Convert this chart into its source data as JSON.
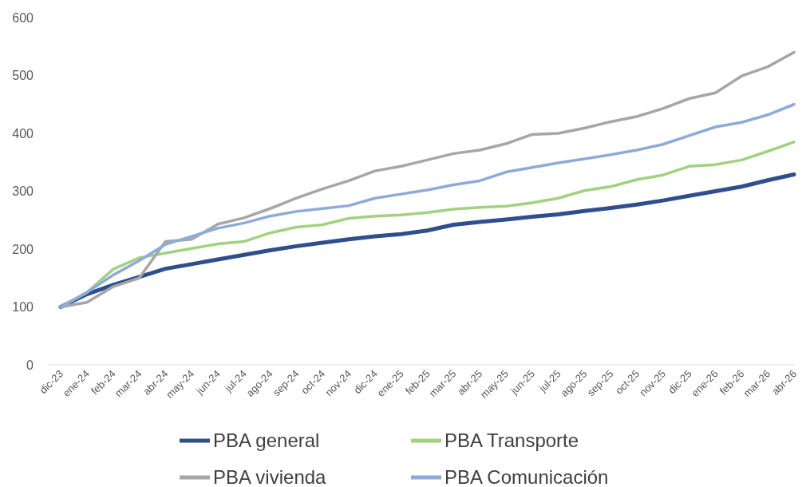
{
  "chart_data": {
    "type": "line",
    "categories": [
      "dic-23",
      "ene-24",
      "feb-24",
      "mar-24",
      "abr-24",
      "may-24",
      "jun-24",
      "jul-24",
      "ago-24",
      "sep-24",
      "oct-24",
      "nov-24",
      "dic-24",
      "ene-25",
      "feb-25",
      "mar-25",
      "abr-25",
      "may-25",
      "jun-25",
      "jul-25",
      "ago-25",
      "sep-25",
      "oct-25",
      "nov-25",
      "dic-25",
      "ene-26",
      "feb-26",
      "mar-26",
      "abr-26"
    ],
    "series": [
      {
        "name": "PBA general",
        "color": "#2f4e8c",
        "values": [
          100,
          122,
          138,
          152,
          166,
          174,
          182,
          190,
          198,
          205,
          211,
          217,
          222,
          226,
          232,
          242,
          247,
          251,
          256,
          260,
          266,
          271,
          277,
          284,
          292,
          300,
          308,
          319,
          329
        ]
      },
      {
        "name": "PBA Transporte",
        "color": "#a3d17f",
        "values": [
          100,
          125,
          165,
          185,
          193,
          201,
          209,
          213,
          228,
          238,
          242,
          253,
          257,
          259,
          263,
          269,
          272,
          274,
          280,
          288,
          301,
          308,
          320,
          328,
          343,
          346,
          354,
          369,
          385
        ]
      },
      {
        "name": "PBA vivienda",
        "color": "#a6a6a6",
        "values": [
          100,
          108,
          135,
          150,
          213,
          217,
          243,
          254,
          270,
          288,
          304,
          318,
          335,
          343,
          354,
          365,
          371,
          382,
          398,
          400,
          409,
          420,
          429,
          443,
          460,
          470,
          499,
          515,
          540
        ]
      },
      {
        "name": "PBA Comunicación",
        "color": "#8eaadb",
        "values": [
          100,
          125,
          155,
          180,
          208,
          222,
          236,
          245,
          257,
          265,
          270,
          275,
          288,
          295,
          302,
          311,
          318,
          333,
          341,
          349,
          356,
          363,
          371,
          381,
          396,
          411,
          419,
          432,
          450
        ]
      }
    ],
    "ylim": [
      0,
      600
    ],
    "yticks": [
      0,
      100,
      200,
      300,
      400,
      500,
      600
    ],
    "grid": false,
    "legend": "bottom",
    "marker": "none",
    "line_style": "solid"
  }
}
